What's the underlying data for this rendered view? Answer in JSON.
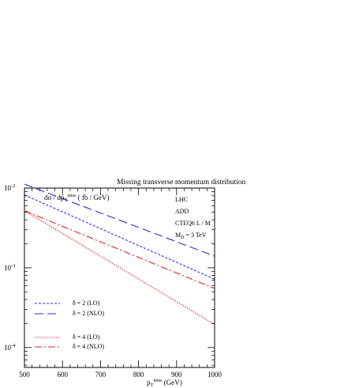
{
  "chart_data": {
    "type": "line",
    "title": "Missing transverse momentum distribution",
    "ylabel_main": "dσ / dp",
    "ylabel_sub": "T",
    "ylabel_sup": "miss",
    "ylabel_tail": " ( fb / GeV)",
    "xlabel_main": "p",
    "xlabel_sub": "T",
    "xlabel_sup": "miss",
    "xlabel_tail": " (GeV)",
    "info": {
      "line1": "LHC",
      "line2": "ADD",
      "line3": "CTEQ6 L / M",
      "line4_main": "M",
      "line4_sub": "D",
      "line4_tail": " = 3 TeV"
    },
    "xlim": [
      500,
      1000
    ],
    "ylim_log10": [
      -4.25,
      -2.0
    ],
    "yscale": "log",
    "xticks": [
      {
        "v": 500,
        "label": "500"
      },
      {
        "v": 600,
        "label": "600"
      },
      {
        "v": 700,
        "label": "700"
      },
      {
        "v": 800,
        "label": "800"
      },
      {
        "v": 900,
        "label": "900"
      },
      {
        "v": 1000,
        "label": "1000"
      }
    ],
    "yticks": [
      {
        "exp": -2,
        "base": "10",
        "sup": "-2"
      },
      {
        "exp": -3,
        "base": "10",
        "sup": "-3"
      },
      {
        "exp": -4,
        "base": "10",
        "sup": "-4"
      }
    ],
    "series": [
      {
        "name": "δ = 2 (LO)",
        "color": "#2a2ae0",
        "dash": "3,2",
        "x": [
          500,
          1000
        ],
        "y": [
          0.0082,
          0.00072
        ]
      },
      {
        "name": "δ = 2 (NLO)",
        "color": "#2a2ae0",
        "dash": "11,5",
        "x": [
          500,
          1000
        ],
        "y": [
          0.0112,
          0.0014
        ]
      },
      {
        "name": "δ = 4 (LO)",
        "color": "#e02020",
        "dash": "1.5,1.5",
        "x": [
          500,
          1000
        ],
        "y": [
          0.0052,
          0.000195
        ]
      },
      {
        "name": "δ = 4 (NLO)",
        "color": "#e02020",
        "dash": "9,3,2,3",
        "x": [
          500,
          1000
        ],
        "y": [
          0.0052,
          0.00055
        ]
      }
    ],
    "legend_placement": "lower-left",
    "grid": false
  }
}
